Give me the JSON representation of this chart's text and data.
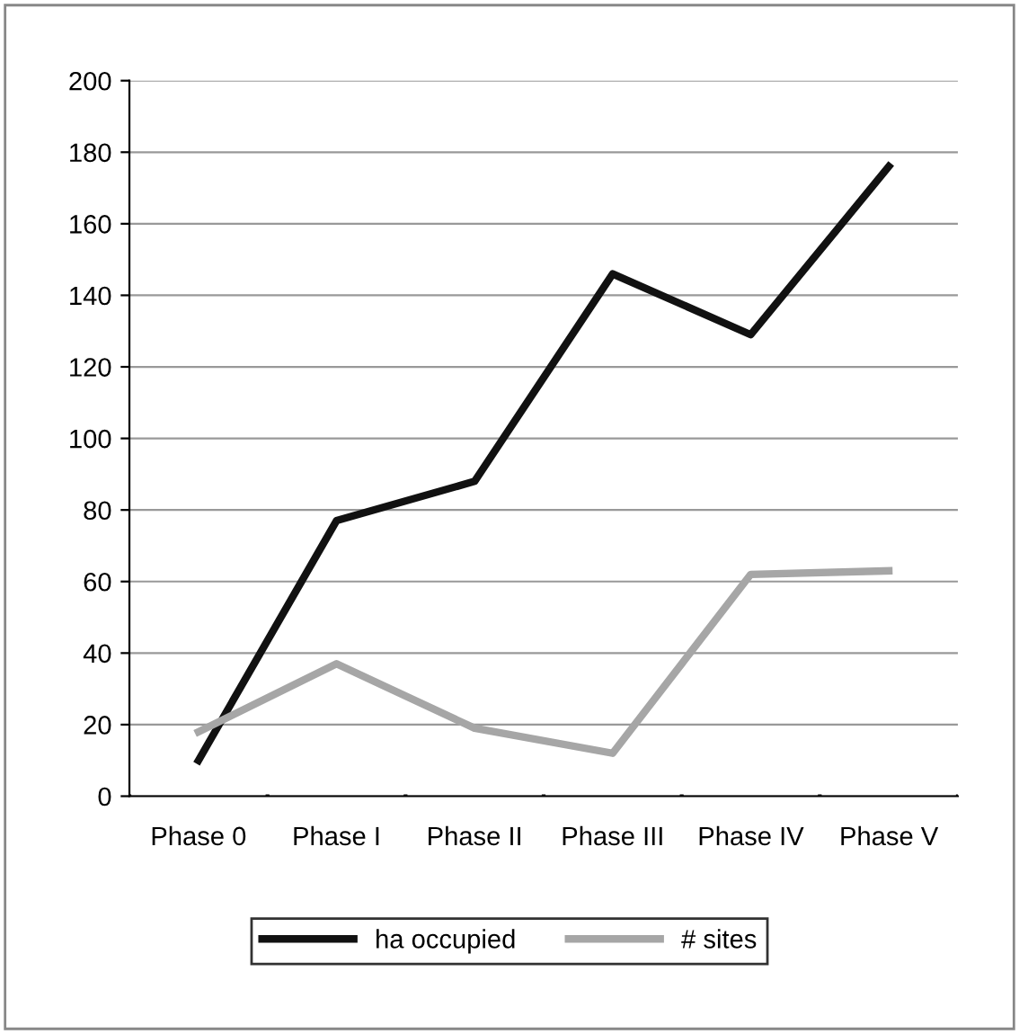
{
  "chart_data": {
    "type": "line",
    "categories": [
      "Phase 0",
      "Phase I",
      "Phase II",
      "Phase III",
      "Phase IV",
      "Phase V"
    ],
    "series": [
      {
        "name": "ha occupied",
        "color": "#111111",
        "values": [
          10,
          77,
          88,
          146,
          129,
          176
        ]
      },
      {
        "name": "# sites",
        "color": "#a6a6a6",
        "values": [
          18,
          37,
          19,
          12,
          62,
          63
        ]
      }
    ],
    "ylim": [
      0,
      200
    ],
    "yticks": [
      0,
      20,
      40,
      60,
      80,
      100,
      120,
      140,
      160,
      180,
      200
    ],
    "grid": "y",
    "legend": "bottom",
    "marker": "none",
    "line_style": "solid"
  }
}
